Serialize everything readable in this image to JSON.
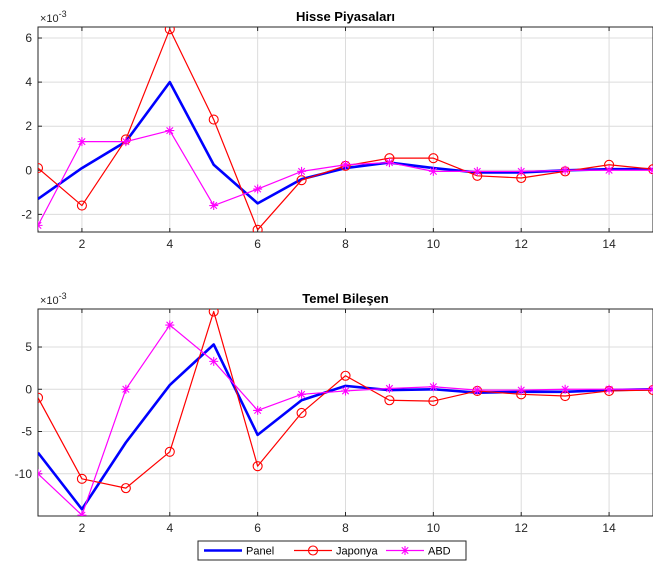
{
  "chart_data": [
    {
      "type": "line",
      "title": "Hisse Piyasaları",
      "xlabel": "",
      "ylabel": "",
      "multiplier_base": "×10",
      "multiplier_exp": "-3",
      "xlim": [
        1,
        15
      ],
      "ylim": [
        -2.8,
        6.5
      ],
      "xticks": [
        2,
        4,
        6,
        8,
        10,
        12,
        14
      ],
      "yticks": [
        -2,
        0,
        2,
        4,
        6
      ],
      "grid": true,
      "x": [
        1,
        2,
        3,
        4,
        5,
        6,
        7,
        8,
        9,
        10,
        11,
        12,
        13,
        14,
        15
      ],
      "series": [
        {
          "name": "Panel",
          "color": "#0000ff",
          "marker": "none",
          "values": [
            -1.3,
            0.1,
            1.3,
            4.0,
            0.25,
            -1.5,
            -0.4,
            0.1,
            0.35,
            0.1,
            -0.1,
            -0.1,
            0.0,
            0.05,
            0.05
          ]
        },
        {
          "name": "Japonya",
          "color": "#ff0000",
          "marker": "circle",
          "values": [
            0.1,
            -1.6,
            1.4,
            6.4,
            2.3,
            -2.7,
            -0.45,
            0.2,
            0.55,
            0.55,
            -0.25,
            -0.35,
            -0.05,
            0.25,
            0.05
          ]
        },
        {
          "name": "ABD",
          "color": "#ff00ff",
          "marker": "star",
          "values": [
            -2.5,
            1.3,
            1.3,
            1.8,
            -1.6,
            -0.85,
            -0.05,
            0.25,
            0.35,
            -0.05,
            -0.05,
            -0.05,
            0.0,
            0.0,
            0.0
          ]
        }
      ]
    },
    {
      "type": "line",
      "title": "Temel Bileşen",
      "xlabel": "",
      "ylabel": "",
      "multiplier_base": "×10",
      "multiplier_exp": "-3",
      "xlim": [
        1,
        15
      ],
      "ylim": [
        -15,
        9.5
      ],
      "xticks": [
        2,
        4,
        6,
        8,
        10,
        12,
        14
      ],
      "yticks": [
        -10,
        -5,
        0,
        5
      ],
      "grid": true,
      "x": [
        1,
        2,
        3,
        4,
        5,
        6,
        7,
        8,
        9,
        10,
        11,
        12,
        13,
        14,
        15
      ],
      "series": [
        {
          "name": "Panel",
          "color": "#0000ff",
          "marker": "none",
          "values": [
            -7.5,
            -14.2,
            -6.3,
            0.5,
            5.3,
            -5.4,
            -1.3,
            0.4,
            -0.1,
            0.0,
            -0.4,
            -0.3,
            -0.3,
            -0.1,
            0.0
          ]
        },
        {
          "name": "Japonya",
          "color": "#ff0000",
          "marker": "circle",
          "values": [
            -1.0,
            -10.6,
            -11.7,
            -7.4,
            9.2,
            -9.1,
            -2.8,
            1.6,
            -1.3,
            -1.4,
            -0.2,
            -0.6,
            -0.8,
            -0.2,
            -0.1
          ]
        },
        {
          "name": "ABD",
          "color": "#ff00ff",
          "marker": "star",
          "values": [
            -10.0,
            -14.9,
            0.0,
            7.6,
            3.3,
            -2.5,
            -0.6,
            -0.2,
            0.1,
            0.3,
            -0.1,
            -0.1,
            0.0,
            0.0,
            0.0
          ]
        }
      ]
    }
  ],
  "legend": {
    "entries": [
      "Panel",
      "Japonya",
      "ABD"
    ],
    "placement": "bottom-center"
  }
}
